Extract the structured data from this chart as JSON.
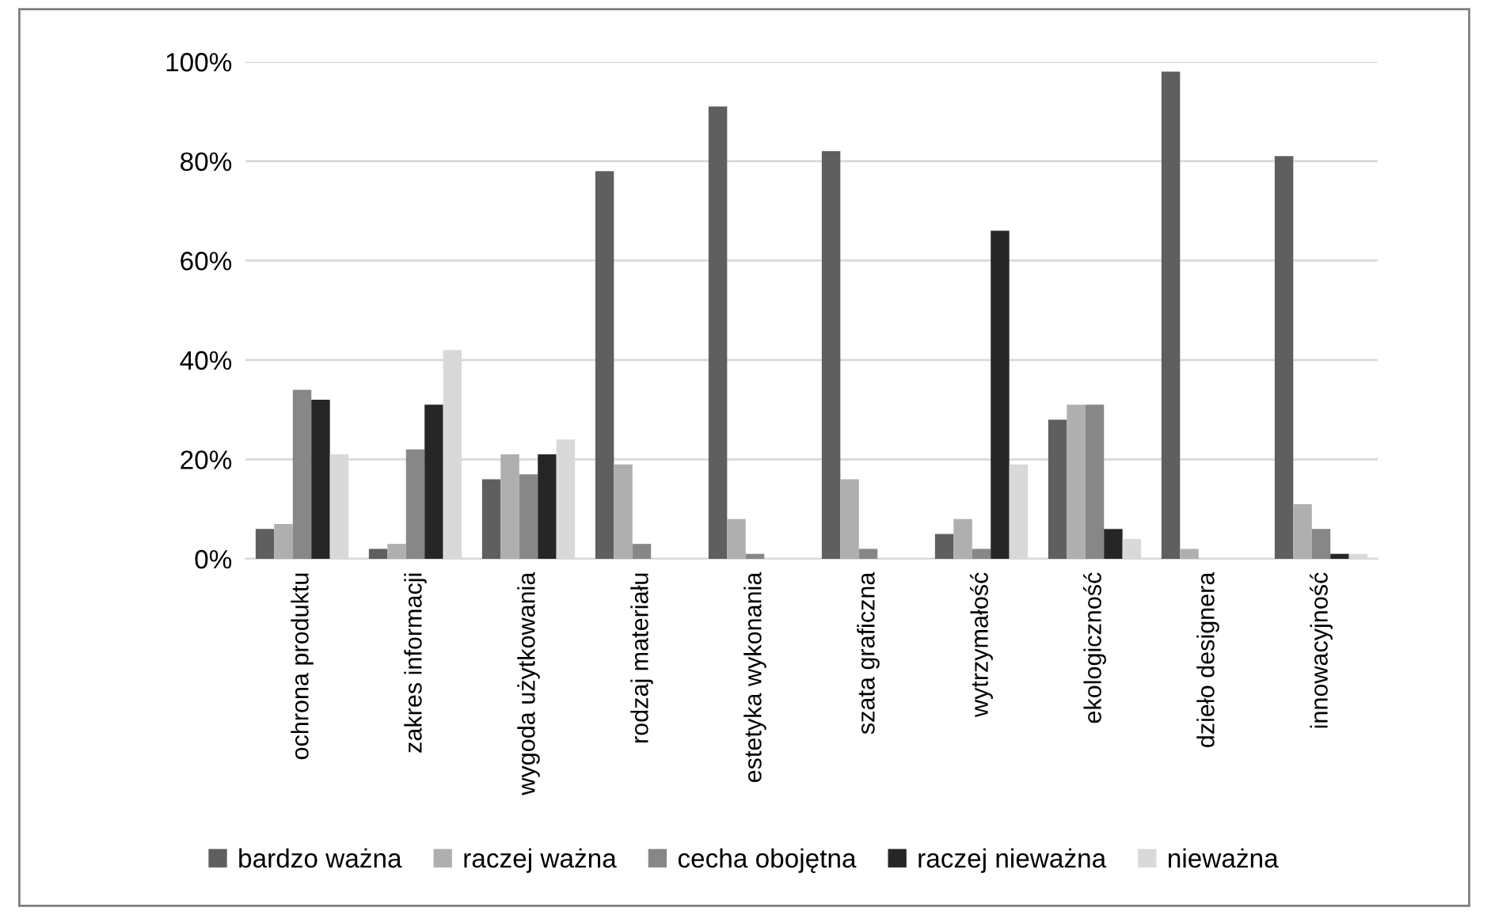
{
  "chart_data": {
    "type": "bar",
    "categories": [
      "ochrona produktu",
      "zakres informacji",
      "wygoda użytkowania",
      "rodzaj materiału",
      "estetyka wykonania",
      "szata graficzna",
      "wytrzymałość",
      "ekologiczność",
      "dzieło designera",
      "innowacyjność"
    ],
    "series": [
      {
        "name": "bardzo ważna",
        "color": "#5f5f5f",
        "values": [
          6,
          2,
          16,
          78,
          91,
          82,
          5,
          28,
          98,
          81
        ]
      },
      {
        "name": "raczej ważna",
        "color": "#afafaf",
        "values": [
          7,
          3,
          21,
          19,
          8,
          16,
          8,
          31,
          2,
          11
        ]
      },
      {
        "name": "cecha obojętna",
        "color": "#878787",
        "values": [
          34,
          22,
          17,
          3,
          1,
          2,
          2,
          31,
          0,
          6
        ]
      },
      {
        "name": "raczej nieważna",
        "color": "#262626",
        "values": [
          32,
          31,
          21,
          0,
          0,
          0,
          66,
          6,
          0,
          1
        ]
      },
      {
        "name": "nieważna",
        "color": "#d9d9d9",
        "values": [
          21,
          42,
          24,
          0,
          0,
          0,
          19,
          4,
          0,
          1
        ]
      }
    ],
    "ylim": [
      0,
      100
    ],
    "yticks": [
      {
        "value": 0,
        "label": "0%"
      },
      {
        "value": 20,
        "label": "20%"
      },
      {
        "value": 40,
        "label": "40%"
      },
      {
        "value": 60,
        "label": "60%"
      },
      {
        "value": 80,
        "label": "80%"
      },
      {
        "value": 100,
        "label": "100%"
      }
    ],
    "grid": "y",
    "legend": "bottom"
  }
}
